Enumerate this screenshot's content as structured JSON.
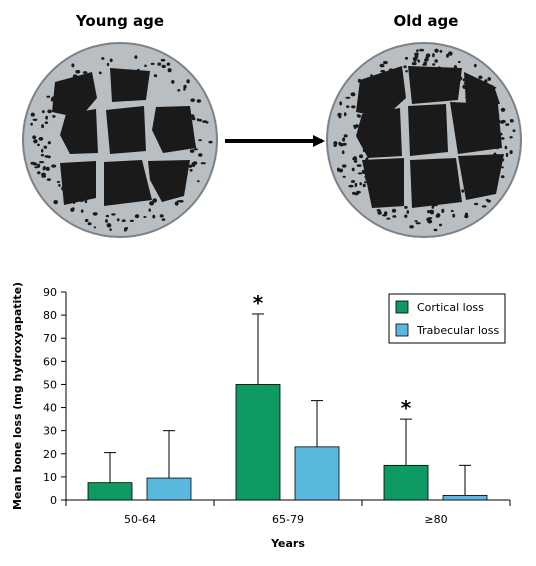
{
  "illustration": {
    "left_title": "Young age",
    "right_title": "Old age"
  },
  "chart_data": {
    "type": "bar",
    "categories": [
      "50-64",
      "65-79",
      "≥80"
    ],
    "series": [
      {
        "name": "Cortical loss",
        "values": [
          7.5,
          50,
          15
        ],
        "errors": [
          13,
          30.5,
          20
        ],
        "color": "#0e9a63"
      },
      {
        "name": "Trabecular loss",
        "values": [
          9.5,
          23,
          2
        ],
        "errors": [
          20.5,
          20,
          13
        ],
        "color": "#5ab8df"
      }
    ],
    "significance": [
      "",
      "*",
      "*"
    ],
    "xlabel": "Years",
    "ylabel": "Mean bone loss (mg hydroxyapatite)",
    "ylim": [
      0,
      90
    ],
    "yticks": [
      0,
      10,
      20,
      30,
      40,
      50,
      60,
      70,
      80,
      90
    ],
    "grid": false,
    "legend": "top-right"
  }
}
